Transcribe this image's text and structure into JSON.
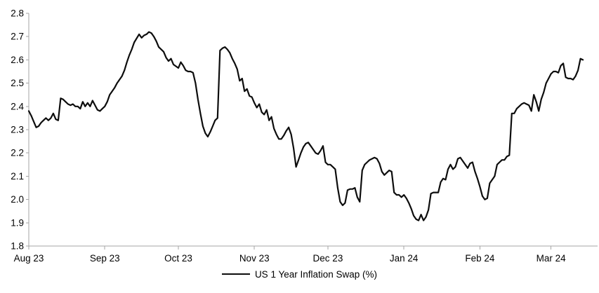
{
  "legend": {
    "label": "US 1 Year Inflation Swap (%)"
  },
  "chart_data": {
    "type": "line",
    "title": "",
    "xlabel": "",
    "ylabel": "",
    "grid": false,
    "background": "#ffffff",
    "axis_color": "#a6a6a6",
    "text_color": "#000000",
    "line_color": "#0d0d0d",
    "line_width": 2.2,
    "legend_position": "bottom-center",
    "legend_entries": [
      "US 1 Year Inflation Swap (%)"
    ],
    "ylim": [
      1.8,
      2.8
    ],
    "y_ticks": [
      "1.8",
      "1.9",
      "2.0",
      "2.1",
      "2.2",
      "2.3",
      "2.4",
      "2.5",
      "2.6",
      "2.7",
      "2.8"
    ],
    "x_domain": [
      "2023-08-01",
      "2024-03-20"
    ],
    "x_ticks": [
      {
        "date": "2023-08-01",
        "label": "Aug 23"
      },
      {
        "date": "2023-09-01",
        "label": "Sep 23"
      },
      {
        "date": "2023-10-01",
        "label": "Oct 23"
      },
      {
        "date": "2023-11-01",
        "label": "Nov 23"
      },
      {
        "date": "2023-12-01",
        "label": "Dec 23"
      },
      {
        "date": "2024-01-01",
        "label": "Jan 24"
      },
      {
        "date": "2024-02-01",
        "label": "Feb 24"
      },
      {
        "date": "2024-03-01",
        "label": "Mar 24"
      }
    ],
    "series": [
      {
        "name": "US 1 Year Inflation Swap (%)",
        "color": "#0d0d0d",
        "points": [
          [
            "2023-08-01",
            2.38
          ],
          [
            "2023-08-02",
            2.36
          ],
          [
            "2023-08-03",
            2.335
          ],
          [
            "2023-08-04",
            2.31
          ],
          [
            "2023-08-05",
            2.315
          ],
          [
            "2023-08-06",
            2.33
          ],
          [
            "2023-08-07",
            2.34
          ],
          [
            "2023-08-08",
            2.35
          ],
          [
            "2023-08-09",
            2.34
          ],
          [
            "2023-08-10",
            2.35
          ],
          [
            "2023-08-11",
            2.37
          ],
          [
            "2023-08-12",
            2.345
          ],
          [
            "2023-08-13",
            2.34
          ],
          [
            "2023-08-14",
            2.435
          ],
          [
            "2023-08-15",
            2.43
          ],
          [
            "2023-08-16",
            2.42
          ],
          [
            "2023-08-17",
            2.41
          ],
          [
            "2023-08-18",
            2.405
          ],
          [
            "2023-08-19",
            2.41
          ],
          [
            "2023-08-20",
            2.4
          ],
          [
            "2023-08-21",
            2.4
          ],
          [
            "2023-08-22",
            2.39
          ],
          [
            "2023-08-23",
            2.42
          ],
          [
            "2023-08-24",
            2.4
          ],
          [
            "2023-08-25",
            2.415
          ],
          [
            "2023-08-26",
            2.4
          ],
          [
            "2023-08-27",
            2.425
          ],
          [
            "2023-08-28",
            2.405
          ],
          [
            "2023-08-29",
            2.385
          ],
          [
            "2023-08-30",
            2.38
          ],
          [
            "2023-08-31",
            2.39
          ],
          [
            "2023-09-01",
            2.4
          ],
          [
            "2023-09-02",
            2.42
          ],
          [
            "2023-09-03",
            2.45
          ],
          [
            "2023-09-04",
            2.465
          ],
          [
            "2023-09-05",
            2.48
          ],
          [
            "2023-09-06",
            2.5
          ],
          [
            "2023-09-07",
            2.515
          ],
          [
            "2023-09-08",
            2.53
          ],
          [
            "2023-09-09",
            2.555
          ],
          [
            "2023-09-10",
            2.59
          ],
          [
            "2023-09-11",
            2.62
          ],
          [
            "2023-09-12",
            2.645
          ],
          [
            "2023-09-13",
            2.675
          ],
          [
            "2023-09-15",
            2.71
          ],
          [
            "2023-09-16",
            2.695
          ],
          [
            "2023-09-17",
            2.705
          ],
          [
            "2023-09-18",
            2.71
          ],
          [
            "2023-09-19",
            2.72
          ],
          [
            "2023-09-20",
            2.715
          ],
          [
            "2023-09-21",
            2.7
          ],
          [
            "2023-09-22",
            2.68
          ],
          [
            "2023-09-23",
            2.655
          ],
          [
            "2023-09-25",
            2.635
          ],
          [
            "2023-09-26",
            2.61
          ],
          [
            "2023-09-27",
            2.595
          ],
          [
            "2023-09-28",
            2.605
          ],
          [
            "2023-09-29",
            2.58
          ],
          [
            "2023-10-01",
            2.565
          ],
          [
            "2023-10-02",
            2.59
          ],
          [
            "2023-10-03",
            2.575
          ],
          [
            "2023-10-04",
            2.555
          ],
          [
            "2023-10-05",
            2.55
          ],
          [
            "2023-10-06",
            2.55
          ],
          [
            "2023-10-07",
            2.545
          ],
          [
            "2023-10-08",
            2.5
          ],
          [
            "2023-10-09",
            2.43
          ],
          [
            "2023-10-10",
            2.37
          ],
          [
            "2023-10-11",
            2.315
          ],
          [
            "2023-10-12",
            2.285
          ],
          [
            "2023-10-13",
            2.27
          ],
          [
            "2023-10-14",
            2.29
          ],
          [
            "2023-10-15",
            2.315
          ],
          [
            "2023-10-16",
            2.34
          ],
          [
            "2023-10-17",
            2.35
          ],
          [
            "2023-10-18",
            2.64
          ],
          [
            "2023-10-19",
            2.65
          ],
          [
            "2023-10-20",
            2.655
          ],
          [
            "2023-10-21",
            2.645
          ],
          [
            "2023-10-22",
            2.63
          ],
          [
            "2023-10-23",
            2.605
          ],
          [
            "2023-10-24",
            2.585
          ],
          [
            "2023-10-25",
            2.56
          ],
          [
            "2023-10-26",
            2.51
          ],
          [
            "2023-10-27",
            2.52
          ],
          [
            "2023-10-28",
            2.465
          ],
          [
            "2023-10-29",
            2.475
          ],
          [
            "2023-10-30",
            2.445
          ],
          [
            "2023-10-31",
            2.44
          ],
          [
            "2023-11-01",
            2.415
          ],
          [
            "2023-11-02",
            2.395
          ],
          [
            "2023-11-03",
            2.41
          ],
          [
            "2023-11-04",
            2.375
          ],
          [
            "2023-11-05",
            2.365
          ],
          [
            "2023-11-06",
            2.385
          ],
          [
            "2023-11-07",
            2.34
          ],
          [
            "2023-11-08",
            2.355
          ],
          [
            "2023-11-09",
            2.305
          ],
          [
            "2023-11-10",
            2.28
          ],
          [
            "2023-11-11",
            2.26
          ],
          [
            "2023-11-12",
            2.26
          ],
          [
            "2023-11-13",
            2.275
          ],
          [
            "2023-11-14",
            2.295
          ],
          [
            "2023-11-15",
            2.31
          ],
          [
            "2023-11-16",
            2.28
          ],
          [
            "2023-11-17",
            2.22
          ],
          [
            "2023-11-18",
            2.14
          ],
          [
            "2023-11-19",
            2.17
          ],
          [
            "2023-11-20",
            2.2
          ],
          [
            "2023-11-21",
            2.225
          ],
          [
            "2023-11-22",
            2.24
          ],
          [
            "2023-11-23",
            2.245
          ],
          [
            "2023-11-24",
            2.23
          ],
          [
            "2023-11-25",
            2.215
          ],
          [
            "2023-11-26",
            2.2
          ],
          [
            "2023-11-27",
            2.195
          ],
          [
            "2023-11-28",
            2.21
          ],
          [
            "2023-11-29",
            2.23
          ],
          [
            "2023-11-30",
            2.16
          ],
          [
            "2023-12-01",
            2.15
          ],
          [
            "2023-12-02",
            2.15
          ],
          [
            "2023-12-03",
            2.14
          ],
          [
            "2023-12-04",
            2.13
          ],
          [
            "2023-12-05",
            2.05
          ],
          [
            "2023-12-06",
            1.99
          ],
          [
            "2023-12-07",
            1.975
          ],
          [
            "2023-12-08",
            1.985
          ],
          [
            "2023-12-09",
            2.04
          ],
          [
            "2023-12-10",
            2.045
          ],
          [
            "2023-12-11",
            2.045
          ],
          [
            "2023-12-12",
            2.05
          ],
          [
            "2023-12-13",
            2.01
          ],
          [
            "2023-12-14",
            1.99
          ],
          [
            "2023-12-15",
            2.125
          ],
          [
            "2023-12-16",
            2.15
          ],
          [
            "2023-12-17",
            2.16
          ],
          [
            "2023-12-18",
            2.17
          ],
          [
            "2023-12-19",
            2.175
          ],
          [
            "2023-12-20",
            2.18
          ],
          [
            "2023-12-21",
            2.175
          ],
          [
            "2023-12-22",
            2.155
          ],
          [
            "2023-12-23",
            2.12
          ],
          [
            "2023-12-24",
            2.105
          ],
          [
            "2023-12-25",
            2.115
          ],
          [
            "2023-12-26",
            2.125
          ],
          [
            "2023-12-27",
            2.12
          ],
          [
            "2023-12-28",
            2.03
          ],
          [
            "2023-12-29",
            2.02
          ],
          [
            "2023-12-30",
            2.02
          ],
          [
            "2023-12-31",
            2.01
          ],
          [
            "2024-01-01",
            2.02
          ],
          [
            "2024-01-02",
            2.005
          ],
          [
            "2024-01-03",
            1.985
          ],
          [
            "2024-01-04",
            1.96
          ],
          [
            "2024-01-05",
            1.93
          ],
          [
            "2024-01-06",
            1.915
          ],
          [
            "2024-01-07",
            1.91
          ],
          [
            "2024-01-08",
            1.935
          ],
          [
            "2024-01-09",
            1.91
          ],
          [
            "2024-01-10",
            1.925
          ],
          [
            "2024-01-11",
            1.955
          ],
          [
            "2024-01-12",
            2.025
          ],
          [
            "2024-01-13",
            2.03
          ],
          [
            "2024-01-14",
            2.03
          ],
          [
            "2024-01-15",
            2.03
          ],
          [
            "2024-01-16",
            2.075
          ],
          [
            "2024-01-17",
            2.09
          ],
          [
            "2024-01-18",
            2.085
          ],
          [
            "2024-01-19",
            2.13
          ],
          [
            "2024-01-20",
            2.15
          ],
          [
            "2024-01-21",
            2.13
          ],
          [
            "2024-01-22",
            2.14
          ],
          [
            "2024-01-23",
            2.175
          ],
          [
            "2024-01-24",
            2.18
          ],
          [
            "2024-01-25",
            2.165
          ],
          [
            "2024-01-26",
            2.15
          ],
          [
            "2024-01-27",
            2.135
          ],
          [
            "2024-01-28",
            2.155
          ],
          [
            "2024-01-29",
            2.16
          ],
          [
            "2024-01-30",
            2.12
          ],
          [
            "2024-01-31",
            2.09
          ],
          [
            "2024-02-01",
            2.055
          ],
          [
            "2024-02-02",
            2.015
          ],
          [
            "2024-02-03",
            2.0
          ],
          [
            "2024-02-04",
            2.005
          ],
          [
            "2024-02-05",
            2.07
          ],
          [
            "2024-02-06",
            2.085
          ],
          [
            "2024-02-07",
            2.1
          ],
          [
            "2024-02-08",
            2.15
          ],
          [
            "2024-02-09",
            2.16
          ],
          [
            "2024-02-10",
            2.17
          ],
          [
            "2024-02-11",
            2.17
          ],
          [
            "2024-02-12",
            2.185
          ],
          [
            "2024-02-13",
            2.19
          ],
          [
            "2024-02-14",
            2.37
          ],
          [
            "2024-02-15",
            2.37
          ],
          [
            "2024-02-16",
            2.39
          ],
          [
            "2024-02-17",
            2.4
          ],
          [
            "2024-02-18",
            2.41
          ],
          [
            "2024-02-19",
            2.415
          ],
          [
            "2024-02-20",
            2.41
          ],
          [
            "2024-02-21",
            2.405
          ],
          [
            "2024-02-22",
            2.38
          ],
          [
            "2024-02-23",
            2.45
          ],
          [
            "2024-02-24",
            2.42
          ],
          [
            "2024-02-25",
            2.38
          ],
          [
            "2024-02-26",
            2.43
          ],
          [
            "2024-02-27",
            2.46
          ],
          [
            "2024-02-28",
            2.5
          ],
          [
            "2024-02-29",
            2.52
          ],
          [
            "2024-03-01",
            2.54
          ],
          [
            "2024-03-02",
            2.55
          ],
          [
            "2024-03-03",
            2.55
          ],
          [
            "2024-03-04",
            2.545
          ],
          [
            "2024-03-05",
            2.575
          ],
          [
            "2024-03-06",
            2.585
          ],
          [
            "2024-03-07",
            2.525
          ],
          [
            "2024-03-08",
            2.52
          ],
          [
            "2024-03-09",
            2.52
          ],
          [
            "2024-03-10",
            2.515
          ],
          [
            "2024-03-11",
            2.53
          ],
          [
            "2024-03-12",
            2.555
          ],
          [
            "2024-03-13",
            2.605
          ],
          [
            "2024-03-14",
            2.6
          ]
        ]
      }
    ]
  }
}
